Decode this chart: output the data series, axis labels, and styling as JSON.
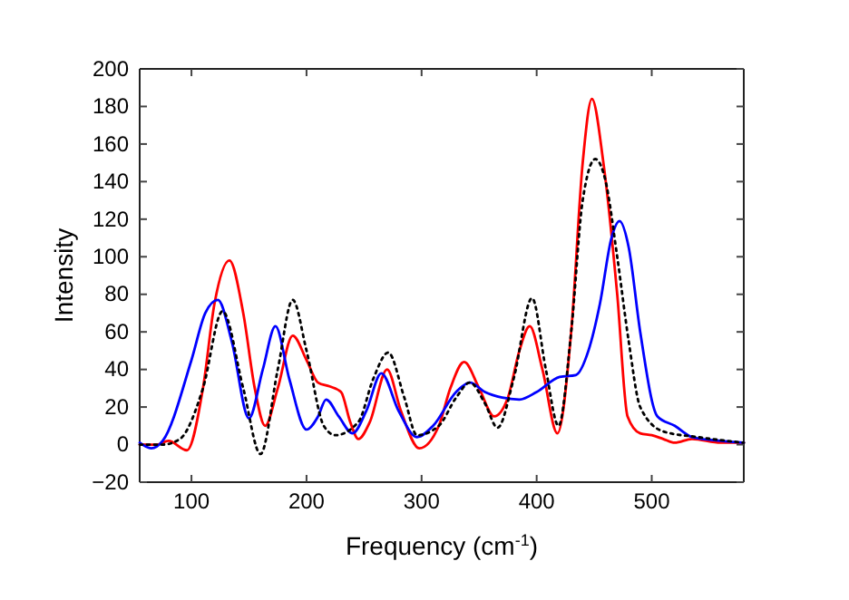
{
  "chart_data": {
    "type": "line",
    "xlabel": "Frequency (cm$^{-1}$)",
    "ylabel": "Intensity",
    "xlim": [
      55,
      580
    ],
    "ylim": [
      -20,
      200
    ],
    "xticks": [
      100,
      200,
      300,
      400,
      500
    ],
    "yticks": [
      -20,
      0,
      20,
      40,
      60,
      80,
      100,
      120,
      140,
      160,
      180,
      200
    ],
    "marker": "none",
    "series": [
      {
        "color": "#ff0000",
        "line_style": "solid",
        "x": [
          55,
          70,
          80,
          96,
          110,
          120,
          133,
          145,
          155,
          164,
          175,
          188,
          200,
          210,
          220,
          230,
          238,
          245,
          255,
          270,
          282,
          298,
          315,
          325,
          337,
          350,
          363,
          375,
          385,
          394,
          405,
          418,
          430,
          440,
          448,
          458,
          470,
          479,
          490,
          500,
          510,
          520,
          535,
          560,
          580
        ],
        "values": [
          0,
          0,
          2,
          -3,
          30,
          75,
          98,
          70,
          30,
          10,
          30,
          58,
          45,
          33,
          31,
          28,
          12,
          3,
          12,
          40,
          18,
          -2,
          10,
          30,
          44,
          30,
          15,
          25,
          50,
          63,
          40,
          6,
          60,
          150,
          184,
          150,
          80,
          15,
          6,
          5,
          3,
          1,
          3,
          1,
          1
        ]
      },
      {
        "color": "#0000ff",
        "line_style": "solid",
        "x": [
          55,
          65,
          75,
          100,
          112,
          123,
          135,
          150,
          162,
          173,
          185,
          200,
          210,
          217,
          228,
          240,
          252,
          265,
          280,
          296,
          310,
          330,
          342,
          355,
          370,
          385,
          400,
          420,
          434,
          445,
          455,
          465,
          472,
          480,
          490,
          505,
          520,
          535,
          560,
          580
        ],
        "values": [
          1,
          -2,
          2,
          45,
          70,
          77,
          55,
          14,
          40,
          63,
          35,
          8,
          15,
          24,
          15,
          6,
          18,
          38,
          18,
          4,
          10,
          28,
          33,
          28,
          25,
          24,
          28,
          36,
          37,
          50,
          75,
          110,
          119,
          105,
          60,
          15,
          10,
          4,
          2,
          1
        ]
      },
      {
        "color": "#000000",
        "line_style": "dotted",
        "x": [
          55,
          75,
          90,
          110,
          127,
          145,
          160,
          175,
          188,
          200,
          215,
          225,
          245,
          258,
          271,
          285,
          296,
          315,
          330,
          342,
          355,
          366,
          380,
          396,
          408,
          419,
          430,
          440,
          451,
          460,
          470,
          480,
          490,
          510,
          540,
          580
        ],
        "values": [
          0,
          0,
          3,
          30,
          71,
          30,
          -5,
          40,
          77,
          50,
          10,
          5,
          12,
          35,
          49,
          25,
          5,
          10,
          25,
          33,
          22,
          9,
          35,
          78,
          40,
          10,
          60,
          130,
          152,
          140,
          100,
          55,
          20,
          7,
          4,
          1
        ]
      }
    ]
  }
}
